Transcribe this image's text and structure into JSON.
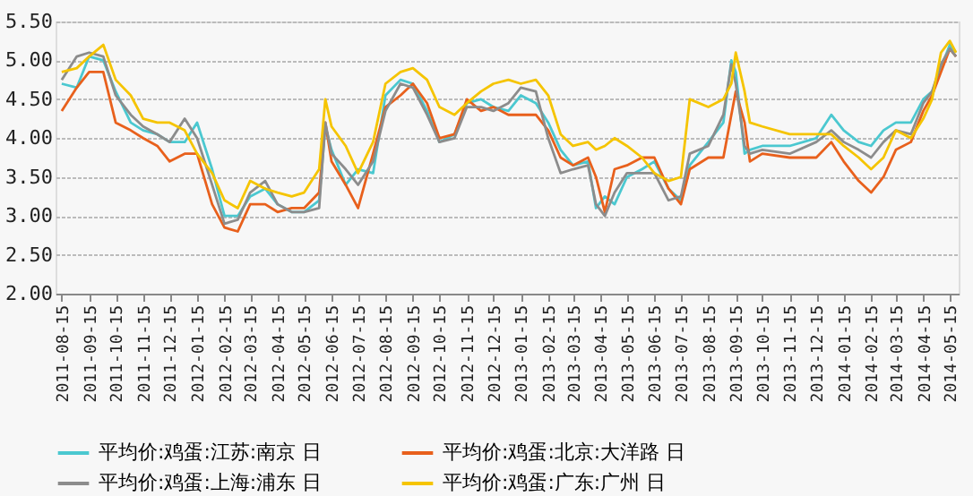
{
  "chart_data": {
    "type": "line",
    "x": [
      "2011-08-15",
      "2011-09-01",
      "2011-09-15",
      "2011-10-01",
      "2011-10-15",
      "2011-11-01",
      "2011-11-15",
      "2011-12-01",
      "2011-12-15",
      "2012-01-01",
      "2012-01-15",
      "2012-02-01",
      "2012-02-15",
      "2012-03-01",
      "2012-03-15",
      "2012-04-01",
      "2012-04-15",
      "2012-05-01",
      "2012-05-15",
      "2012-06-01",
      "2012-06-08",
      "2012-06-15",
      "2012-07-01",
      "2012-07-15",
      "2012-08-01",
      "2012-08-15",
      "2012-09-01",
      "2012-09-15",
      "2012-10-01",
      "2012-10-15",
      "2012-11-01",
      "2012-11-15",
      "2012-12-01",
      "2012-12-15",
      "2013-01-01",
      "2013-01-15",
      "2013-02-01",
      "2013-02-15",
      "2013-03-01",
      "2013-03-15",
      "2013-04-01",
      "2013-04-10",
      "2013-04-20",
      "2013-05-01",
      "2013-05-15",
      "2013-06-01",
      "2013-06-15",
      "2013-07-01",
      "2013-07-15",
      "2013-07-25",
      "2013-08-15",
      "2013-09-01",
      "2013-09-10",
      "2013-09-15",
      "2013-09-25",
      "2013-10-01",
      "2013-10-15",
      "2013-11-15",
      "2013-12-15",
      "2014-01-01",
      "2014-01-15",
      "2014-02-01",
      "2014-02-15",
      "2014-03-01",
      "2014-03-15",
      "2014-04-01",
      "2014-04-15",
      "2014-04-25",
      "2014-05-05",
      "2014-05-15",
      "2014-05-22"
    ],
    "series": [
      {
        "name": "平均价:鸡蛋:江苏:南京 日",
        "color": "#4bc8d0",
        "values": [
          4.7,
          4.65,
          5.05,
          5.0,
          4.6,
          4.2,
          4.1,
          4.05,
          3.95,
          3.95,
          4.2,
          3.6,
          3.0,
          3.0,
          3.25,
          3.35,
          3.15,
          3.05,
          3.05,
          3.2,
          4.15,
          3.85,
          3.4,
          3.6,
          3.55,
          4.55,
          4.75,
          4.7,
          4.35,
          3.95,
          4.05,
          4.45,
          4.5,
          4.4,
          4.35,
          4.55,
          4.45,
          4.2,
          3.85,
          3.65,
          3.7,
          3.1,
          3.25,
          3.15,
          3.5,
          3.6,
          3.7,
          3.35,
          3.2,
          3.65,
          3.95,
          4.2,
          5.0,
          4.85,
          3.8,
          3.85,
          3.9,
          3.9,
          4.0,
          4.3,
          4.1,
          3.95,
          3.9,
          4.1,
          4.2,
          4.2,
          4.5,
          4.6,
          4.9,
          5.2,
          5.1
        ]
      },
      {
        "name": "平均价:鸡蛋:北京:大洋路 日",
        "color": "#e8601c",
        "values": [
          4.35,
          4.65,
          4.85,
          4.85,
          4.2,
          4.1,
          4.0,
          3.9,
          3.7,
          3.8,
          3.8,
          3.15,
          2.85,
          2.8,
          3.15,
          3.15,
          3.05,
          3.1,
          3.1,
          3.3,
          4.2,
          3.7,
          3.4,
          3.1,
          3.8,
          4.4,
          4.55,
          4.7,
          4.45,
          4.0,
          4.05,
          4.5,
          4.35,
          4.4,
          4.3,
          4.3,
          4.3,
          4.1,
          3.75,
          3.65,
          3.75,
          3.5,
          3.05,
          3.6,
          3.65,
          3.75,
          3.75,
          3.35,
          3.15,
          3.6,
          3.75,
          3.75,
          4.3,
          4.6,
          4.2,
          3.7,
          3.8,
          3.75,
          3.75,
          3.95,
          3.7,
          3.45,
          3.3,
          3.5,
          3.85,
          3.95,
          4.35,
          4.55,
          4.85,
          5.15,
          5.05
        ]
      },
      {
        "name": "平均价:鸡蛋:上海:浦东 日",
        "color": "#8c8c8c",
        "values": [
          4.75,
          5.05,
          5.1,
          5.05,
          4.55,
          4.3,
          4.15,
          4.05,
          3.95,
          4.25,
          4.0,
          3.4,
          2.9,
          2.95,
          3.3,
          3.45,
          3.15,
          3.05,
          3.05,
          3.1,
          4.2,
          3.8,
          3.6,
          3.4,
          3.7,
          4.35,
          4.7,
          4.65,
          4.3,
          3.95,
          4.0,
          4.4,
          4.4,
          4.35,
          4.45,
          4.65,
          4.6,
          4.0,
          3.55,
          3.6,
          3.65,
          3.15,
          3.0,
          3.3,
          3.55,
          3.55,
          3.55,
          3.2,
          3.25,
          3.8,
          3.9,
          4.3,
          4.95,
          4.7,
          3.9,
          3.8,
          3.85,
          3.8,
          3.95,
          4.1,
          3.95,
          3.85,
          3.75,
          3.95,
          4.1,
          4.05,
          4.45,
          4.6,
          4.95,
          5.15,
          5.05
        ]
      },
      {
        "name": "平均价:鸡蛋:广东:广州 日",
        "color": "#f5c400",
        "values": [
          4.85,
          4.9,
          5.05,
          5.2,
          4.75,
          4.55,
          4.25,
          4.2,
          4.2,
          4.1,
          3.8,
          3.55,
          3.2,
          3.1,
          3.45,
          3.35,
          3.3,
          3.25,
          3.3,
          3.6,
          4.5,
          4.15,
          3.9,
          3.55,
          3.95,
          4.7,
          4.85,
          4.9,
          4.75,
          4.4,
          4.3,
          4.45,
          4.6,
          4.7,
          4.75,
          4.7,
          4.75,
          4.55,
          4.05,
          3.9,
          3.95,
          3.85,
          3.9,
          4.0,
          3.9,
          3.75,
          3.55,
          3.45,
          3.5,
          4.5,
          4.4,
          4.5,
          4.7,
          5.1,
          4.6,
          4.2,
          4.15,
          4.05,
          4.05,
          4.05,
          3.9,
          3.75,
          3.6,
          3.75,
          4.1,
          4.0,
          4.25,
          4.5,
          5.1,
          5.25,
          5.1
        ]
      }
    ],
    "xlim": [
      "2011-08-08",
      "2014-05-25"
    ],
    "xticks": [
      "2011-08-15",
      "2011-09-15",
      "2011-10-15",
      "2011-11-15",
      "2011-12-15",
      "2012-01-15",
      "2012-02-15",
      "2012-03-15",
      "2012-04-15",
      "2012-05-15",
      "2012-06-15",
      "2012-07-15",
      "2012-08-15",
      "2012-09-15",
      "2012-10-15",
      "2012-11-15",
      "2012-12-15",
      "2013-01-15",
      "2013-02-15",
      "2013-03-15",
      "2013-04-15",
      "2013-05-15",
      "2013-06-15",
      "2013-07-15",
      "2013-08-15",
      "2013-09-15",
      "2013-10-15",
      "2013-11-15",
      "2013-12-15",
      "2014-01-15",
      "2014-02-15",
      "2014-03-15",
      "2014-04-15",
      "2014-05-15"
    ],
    "ylim": [
      2.0,
      5.5
    ],
    "yticks": [
      {
        "value": 2.0,
        "label": "2.00"
      },
      {
        "value": 2.5,
        "label": "2.50"
      },
      {
        "value": 3.0,
        "label": "3.00"
      },
      {
        "value": 3.5,
        "label": "3.50"
      },
      {
        "value": 4.0,
        "label": "4.00"
      },
      {
        "value": 4.5,
        "label": "4.50"
      },
      {
        "value": 5.0,
        "label": "5.00"
      },
      {
        "value": 5.5,
        "label": "5.50"
      }
    ],
    "grid": "y",
    "legend": "bottom",
    "marker": "none",
    "line_style": "solid"
  }
}
